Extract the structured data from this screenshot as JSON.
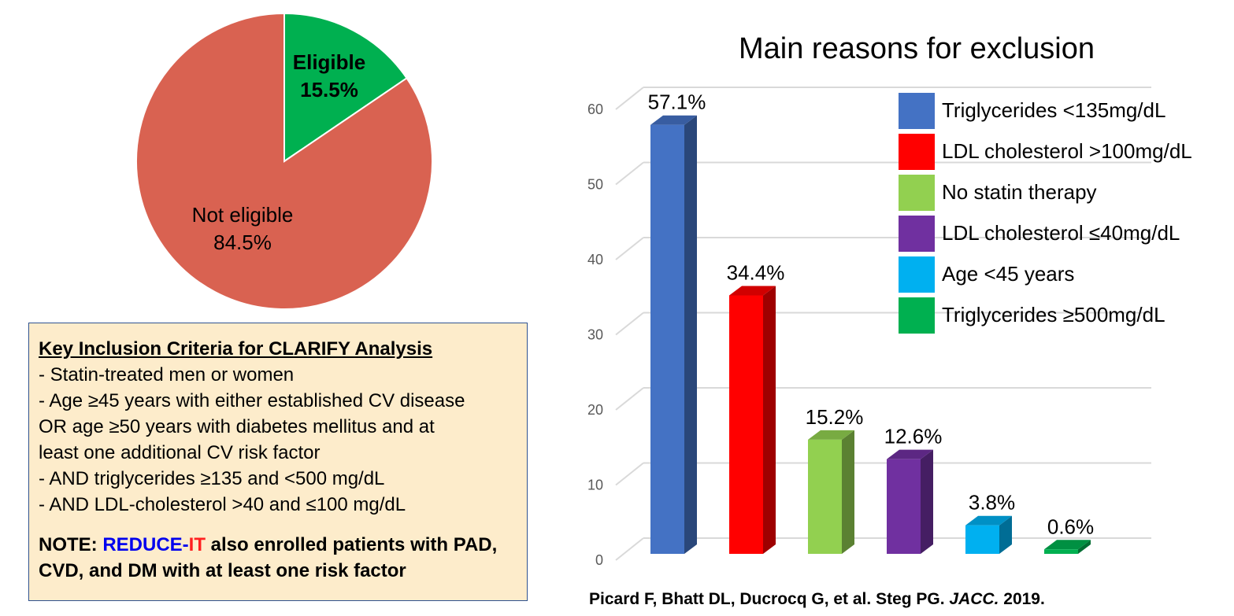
{
  "chart_data": [
    {
      "type": "pie",
      "slices": [
        {
          "label": "Eligible",
          "value": 15.5,
          "value_label": "15.5%",
          "color": "#00b050"
        },
        {
          "label": "Not eligible",
          "value": 84.5,
          "value_label": "84.5%",
          "color": "#d96251"
        }
      ]
    },
    {
      "type": "bar",
      "title": "Main reasons for exclusion",
      "ylim": [
        0,
        60
      ],
      "yticks": [
        "0",
        "10",
        "20",
        "30",
        "40",
        "50",
        "60"
      ],
      "grid": true,
      "legend_position": "top-right",
      "series": [
        {
          "name": "Triglycerides <135mg/dL",
          "value": 57.1,
          "label": "57.1%",
          "color": "#4472c4"
        },
        {
          "name": "LDL cholesterol >100mg/dL",
          "value": 34.4,
          "label": "34.4%",
          "color": "#ff0000"
        },
        {
          "name": "No statin therapy",
          "value": 15.2,
          "label": "15.2%",
          "color": "#92d050"
        },
        {
          "name": "LDL cholesterol ≤40mg/dL",
          "value": 12.6,
          "label": "12.6%",
          "color": "#7030a0"
        },
        {
          "name": "Age <45 years",
          "value": 3.8,
          "label": "3.8%",
          "color": "#00b0f0"
        },
        {
          "name": "Triglycerides ≥500mg/dL",
          "value": 0.6,
          "label": "0.6%",
          "color": "#00b050"
        }
      ]
    }
  ],
  "criteria": {
    "title": "Key Inclusion Criteria for CLARIFY Analysis",
    "lines": [
      "- Statin-treated men or women",
      "- Age ≥45 years with either established CV disease",
      "OR age ≥50 years with diabetes mellitus and at",
      "least one additional CV risk factor",
      "- AND triglycerides ≥135 and <500 mg/dL",
      "- AND LDL-cholesterol >40 and ≤100 mg/dL"
    ],
    "note_prefix": "NOTE: ",
    "note_reduce": "REDUCE-",
    "note_it": "IT",
    "note_rest": " also enrolled patients with PAD, CVD, and DM with at least one risk factor"
  },
  "citation": {
    "authors": "Picard F, Bhatt DL, Ducrocq G, et al. Steg PG. ",
    "journal": "JACC.",
    "year": " 2019."
  }
}
